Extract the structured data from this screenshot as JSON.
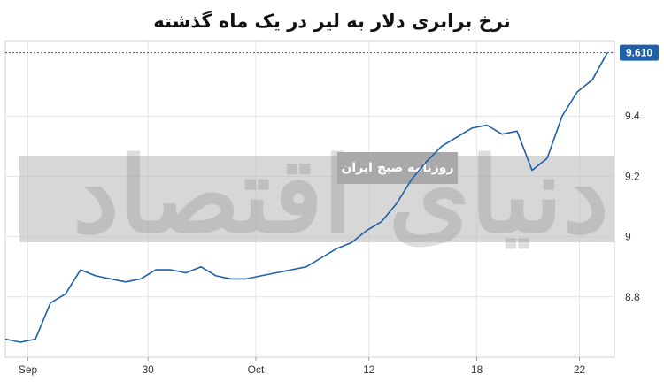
{
  "chart_data": {
    "type": "line",
    "title": "نرخ برابری دلار به لیر در یک ماه گذشته",
    "x_tick_labels": [
      "Sep",
      "30",
      "Oct",
      "12",
      "18",
      "22"
    ],
    "y_tick_labels": [
      "8.8",
      "9",
      "9.2",
      "9.4"
    ],
    "ylim": [
      8.6,
      9.65
    ],
    "last_value_label": "9.610",
    "grid": true,
    "series": [
      {
        "color": "#1f5fa8",
        "x": [
          0,
          1,
          2,
          3,
          4,
          5,
          6,
          7,
          8,
          9,
          10,
          11,
          12,
          13,
          14,
          15,
          16,
          17,
          18,
          19,
          20,
          21,
          22,
          23,
          24,
          25,
          26,
          27,
          28,
          29,
          30,
          31,
          32,
          33,
          34,
          35,
          36,
          37,
          38,
          39,
          40
        ],
        "values": [
          8.66,
          8.65,
          8.66,
          8.78,
          8.81,
          8.89,
          8.87,
          8.86,
          8.85,
          8.86,
          8.89,
          8.89,
          8.88,
          8.9,
          8.87,
          8.86,
          8.86,
          8.87,
          8.88,
          8.89,
          8.9,
          8.93,
          8.96,
          8.98,
          9.02,
          9.05,
          9.11,
          9.19,
          9.25,
          9.3,
          9.33,
          9.36,
          9.37,
          9.34,
          9.35,
          9.22,
          9.26,
          9.4,
          9.48,
          9.52,
          9.61
        ]
      }
    ],
    "watermark": {
      "band_text": "روزنامه صبح ایران",
      "big_text": "دنیای اقتصاد"
    }
  }
}
